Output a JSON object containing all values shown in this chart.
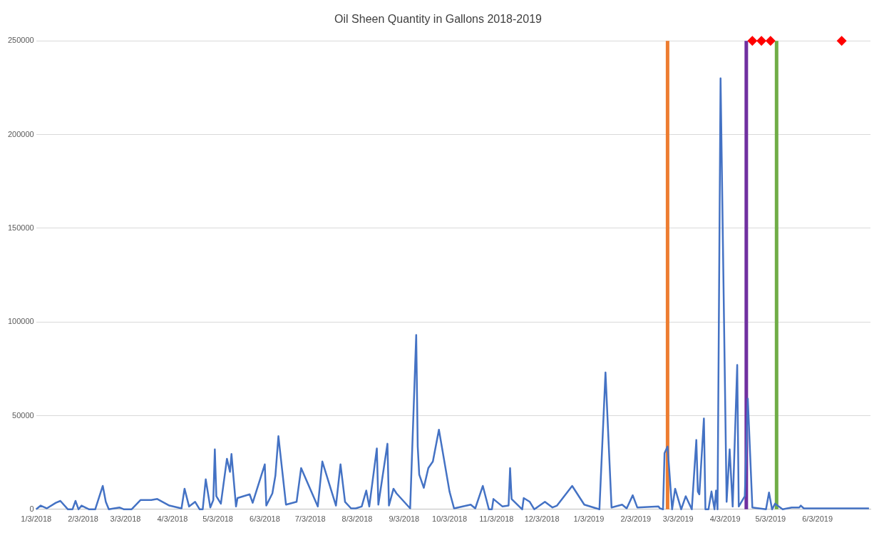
{
  "chart_data": {
    "type": "line",
    "title": "Oil Sheen Quantity in Gallons 2018-2019",
    "x": [
      "2018-01-03",
      "2018-01-06",
      "2018-01-10",
      "2018-01-16",
      "2018-01-19",
      "2018-01-24",
      "2018-01-27",
      "2018-01-29",
      "2018-01-31",
      "2018-02-02",
      "2018-02-07",
      "2018-02-11",
      "2018-02-16",
      "2018-02-18",
      "2018-02-20",
      "2018-02-27",
      "2018-03-02",
      "2018-03-07",
      "2018-03-13",
      "2018-03-20",
      "2018-03-24",
      "2018-04-01",
      "2018-04-09",
      "2018-04-11",
      "2018-04-14",
      "2018-04-18",
      "2018-04-21",
      "2018-04-23",
      "2018-04-25",
      "2018-04-28",
      "2018-04-30",
      "2018-05-01",
      "2018-05-02",
      "2018-05-05",
      "2018-05-09",
      "2018-05-11",
      "2018-05-12",
      "2018-05-15",
      "2018-05-16",
      "2018-05-24",
      "2018-05-26",
      "2018-06-03",
      "2018-06-04",
      "2018-06-08",
      "2018-06-10",
      "2018-06-12",
      "2018-06-17",
      "2018-06-24",
      "2018-06-27",
      "2018-07-08",
      "2018-07-11",
      "2018-07-20",
      "2018-07-23",
      "2018-07-26",
      "2018-07-30",
      "2018-08-02",
      "2018-08-06",
      "2018-08-09",
      "2018-08-11",
      "2018-08-16",
      "2018-08-17",
      "2018-08-23",
      "2018-08-24",
      "2018-08-27",
      "2018-08-29",
      "2018-09-07",
      "2018-09-11",
      "2018-09-12",
      "2018-09-13",
      "2018-09-16",
      "2018-09-19",
      "2018-09-22",
      "2018-09-26",
      "2018-10-03",
      "2018-10-06",
      "2018-10-17",
      "2018-10-20",
      "2018-10-25",
      "2018-10-29",
      "2018-10-31",
      "2018-11-01",
      "2018-11-07",
      "2018-11-11",
      "2018-11-12",
      "2018-11-13",
      "2018-11-20",
      "2018-11-21",
      "2018-11-25",
      "2018-11-28",
      "2018-12-05",
      "2018-12-10",
      "2018-12-13",
      "2018-12-23",
      "2018-12-31",
      "2019-01-10",
      "2019-01-14",
      "2019-01-18",
      "2019-01-25",
      "2019-01-28",
      "2019-02-01",
      "2019-02-04",
      "2019-02-18",
      "2019-02-19",
      "2019-02-21",
      "2019-02-22",
      "2019-02-24",
      "2019-02-27",
      "2019-03-01",
      "2019-03-05",
      "2019-03-08",
      "2019-03-12",
      "2019-03-15",
      "2019-03-16",
      "2019-03-17",
      "2019-03-20",
      "2019-03-21",
      "2019-03-23",
      "2019-03-25",
      "2019-03-27",
      "2019-03-28",
      "2019-03-29",
      "2019-03-31",
      "2019-04-04",
      "2019-04-06",
      "2019-04-08",
      "2019-04-11",
      "2019-04-12",
      "2019-04-16",
      "2019-04-18",
      "2019-04-21",
      "2019-04-30",
      "2019-05-02",
      "2019-05-04",
      "2019-05-06",
      "2019-05-11",
      "2019-05-17",
      "2019-05-22",
      "2019-05-23",
      "2019-05-25",
      "2019-07-07"
    ],
    "series": [
      {
        "color": "#4472c4",
        "values": [
          0,
          2000,
          500,
          3500,
          4500,
          0,
          0,
          4500,
          0,
          2000,
          0,
          0,
          12500,
          4000,
          0,
          1000,
          0,
          0,
          5000,
          5000,
          5500,
          2000,
          500,
          11000,
          1500,
          4000,
          0,
          0,
          16000,
          1000,
          5000,
          32000,
          7000,
          3000,
          27000,
          20000,
          29500,
          1500,
          6000,
          8000,
          3500,
          24000,
          2000,
          8500,
          18000,
          39000,
          2500,
          4000,
          22000,
          1500,
          25500,
          2000,
          24000,
          4000,
          500,
          500,
          1500,
          10000,
          1500,
          32500,
          2500,
          35000,
          2000,
          11000,
          8500,
          500,
          93000,
          33500,
          18500,
          11500,
          22000,
          25500,
          42500,
          9500,
          500,
          2500,
          500,
          12500,
          0,
          0,
          5500,
          1500,
          2000,
          22000,
          5500,
          0,
          6000,
          4000,
          0,
          4000,
          1000,
          2000,
          12500,
          2500,
          0,
          73000,
          1000,
          2500,
          500,
          7500,
          1000,
          1500,
          500,
          0,
          30000,
          33500,
          0,
          11000,
          0,
          7000,
          0,
          37000,
          9500,
          8000,
          48500,
          0,
          0,
          9500,
          0,
          10000,
          0,
          230000,
          4000,
          32000,
          1500,
          77000,
          1500,
          7000,
          59000,
          1000,
          0,
          9000,
          0,
          3000,
          0,
          1000,
          1000,
          2000,
          500,
          500
        ]
      },
      {
        "type": "scatter",
        "color": "#ff0000",
        "marker": "diamond",
        "x": [
          "2019-04-21",
          "2019-04-27",
          "2019-05-03",
          "2019-06-19"
        ],
        "values": [
          250000,
          250000,
          250000,
          250000
        ]
      }
    ],
    "ref_lines": [
      {
        "axis": "x",
        "value": "2019-02-24",
        "color": "#ed7d31"
      },
      {
        "axis": "x",
        "value": "2019-04-17",
        "color": "#7030a0"
      },
      {
        "axis": "x",
        "value": "2019-05-07",
        "color": "#70ad47"
      }
    ],
    "xlim": [
      "2018-01-03",
      "2019-07-08"
    ],
    "xticks": [
      {
        "value": "2018-01-03",
        "label": "1/3/2018"
      },
      {
        "value": "2018-02-03",
        "label": "2/3/2018"
      },
      {
        "value": "2018-03-03",
        "label": "3/3/2018"
      },
      {
        "value": "2018-04-03",
        "label": "4/3/2018"
      },
      {
        "value": "2018-05-03",
        "label": "5/3/2018"
      },
      {
        "value": "2018-06-03",
        "label": "6/3/2018"
      },
      {
        "value": "2018-07-03",
        "label": "7/3/2018"
      },
      {
        "value": "2018-08-03",
        "label": "8/3/2018"
      },
      {
        "value": "2018-09-03",
        "label": "9/3/2018"
      },
      {
        "value": "2018-10-03",
        "label": "10/3/2018"
      },
      {
        "value": "2018-11-03",
        "label": "11/3/2018"
      },
      {
        "value": "2018-12-03",
        "label": "12/3/2018"
      },
      {
        "value": "2019-01-03",
        "label": "1/3/2019"
      },
      {
        "value": "2019-02-03",
        "label": "2/3/2019"
      },
      {
        "value": "2019-03-03",
        "label": "3/3/2019"
      },
      {
        "value": "2019-04-03",
        "label": "4/3/2019"
      },
      {
        "value": "2019-05-03",
        "label": "5/3/2019"
      },
      {
        "value": "2019-06-03",
        "label": "6/3/2019"
      }
    ],
    "ylim": [
      0,
      250000
    ],
    "yticks": [
      0,
      50000,
      100000,
      150000,
      200000,
      250000
    ],
    "grid": "y",
    "legend": false,
    "marker": "none"
  }
}
